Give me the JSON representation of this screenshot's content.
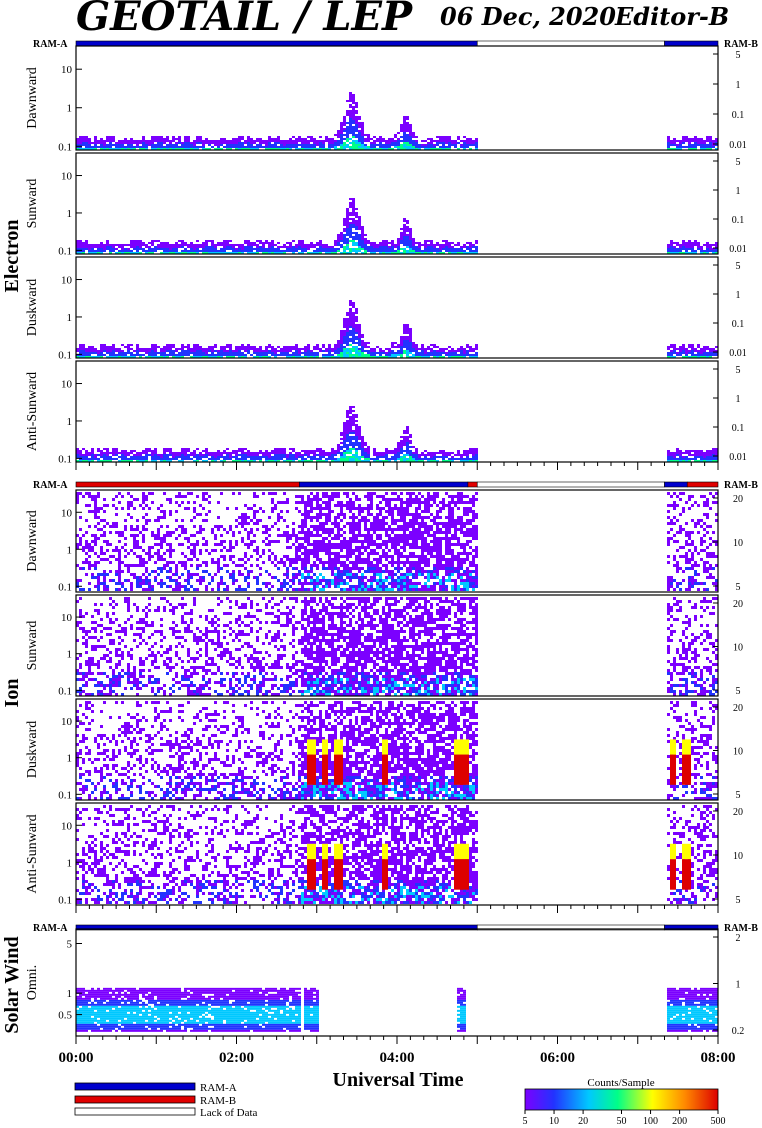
{
  "header": {
    "title": "GEOTAIL / LEP",
    "date": "06 Dec, 2020",
    "editor": "Editor-B"
  },
  "colors": {
    "ram_a": "#0000cc",
    "ram_b": "#e00000",
    "lack_of_data": "#ffffff",
    "spectrogram_scale": [
      "#ffffff",
      "#7b00ff",
      "#2233ff",
      "#00c8ff",
      "#00ff88",
      "#ffff00",
      "#ff8800",
      "#dd0000"
    ]
  },
  "chart_data": [
    {
      "type": "heatmap",
      "group": "Electron",
      "ram_left": "RAM-A",
      "ram_right": "RAM-B",
      "mode_bar": [
        {
          "start": "00:00",
          "end": "05:00",
          "mode": "RAM-A"
        },
        {
          "start": "05:00",
          "end": "07:20",
          "mode": "Lack of Data"
        },
        {
          "start": "07:20",
          "end": "08:00",
          "mode": "RAM-A"
        }
      ],
      "panels": [
        {
          "ylabel": "Dawnward",
          "yticks": [
            "10",
            "1",
            "0.1"
          ],
          "ylim": [
            0.08,
            40
          ],
          "right_ticks": [
            "5",
            "1",
            "0.1",
            "0.01"
          ],
          "peak_time": "03:25",
          "peak_value": 2
        },
        {
          "ylabel": "Sunward",
          "yticks": [
            "10",
            "1",
            "0.1"
          ],
          "ylim": [
            0.08,
            40
          ],
          "right_ticks": [
            "5",
            "1",
            "0.1",
            "0.01"
          ],
          "peak_time": "03:25",
          "peak_value": 2
        },
        {
          "ylabel": "Duskward",
          "yticks": [
            "10",
            "1",
            "0.1"
          ],
          "ylim": [
            0.08,
            40
          ],
          "right_ticks": [
            "5",
            "1",
            "0.1",
            "0.01"
          ],
          "peak_time": "03:25",
          "peak_value": 2
        },
        {
          "ylabel": "Anti-Sunward",
          "yticks": [
            "10",
            "1",
            "0.1"
          ],
          "ylim": [
            0.08,
            40
          ],
          "right_ticks": [
            "5",
            "1",
            "0.1",
            "0.01"
          ],
          "peak_time": "03:25",
          "peak_value": 2
        }
      ],
      "data_intervals": [
        [
          "00:00",
          "05:00"
        ],
        [
          "07:20",
          "08:00"
        ]
      ]
    },
    {
      "type": "heatmap",
      "group": "Ion",
      "ram_left": "RAM-A",
      "ram_right": "RAM-B",
      "mode_bar": [
        {
          "start": "00:00",
          "end": "02:47",
          "mode": "RAM-B"
        },
        {
          "start": "02:47",
          "end": "04:53",
          "mode": "RAM-A"
        },
        {
          "start": "04:53",
          "end": "05:00",
          "mode": "RAM-B"
        },
        {
          "start": "05:00",
          "end": "07:20",
          "mode": "Lack of Data"
        },
        {
          "start": "07:20",
          "end": "07:37",
          "mode": "RAM-A"
        },
        {
          "start": "07:37",
          "end": "08:00",
          "mode": "RAM-B"
        }
      ],
      "panels": [
        {
          "ylabel": "Dawnward",
          "yticks": [
            "10",
            "1",
            "0.1"
          ],
          "ylim": [
            0.07,
            40
          ],
          "right_ticks": [
            "20",
            "10",
            "5"
          ]
        },
        {
          "ylabel": "Sunward",
          "yticks": [
            "10",
            "1",
            "0.1"
          ],
          "ylim": [
            0.07,
            40
          ],
          "right_ticks": [
            "20",
            "10",
            "5"
          ]
        },
        {
          "ylabel": "Duskward",
          "yticks": [
            "10",
            "1",
            "0.1"
          ],
          "ylim": [
            0.07,
            40
          ],
          "right_ticks": [
            "20",
            "10",
            "5"
          ]
        },
        {
          "ylabel": "Anti-Sunward",
          "yticks": [
            "10",
            "1",
            "0.1"
          ],
          "ylim": [
            0.07,
            40
          ],
          "right_ticks": [
            "20",
            "10",
            "5"
          ]
        }
      ],
      "intense_bursts": [
        "02:55",
        "03:05",
        "03:15",
        "03:50",
        "04:45",
        "04:50",
        "07:25",
        "07:35"
      ],
      "data_intervals": [
        [
          "00:00",
          "05:00"
        ],
        [
          "07:20",
          "08:00"
        ]
      ]
    },
    {
      "type": "heatmap",
      "group": "Solar Wind",
      "ram_left": "RAM-A",
      "ram_right": "RAM-B",
      "mode_bar": [
        {
          "start": "00:00",
          "end": "05:00",
          "mode": "RAM-A"
        },
        {
          "start": "05:00",
          "end": "07:20",
          "mode": "Lack of Data"
        },
        {
          "start": "07:20",
          "end": "08:00",
          "mode": "RAM-A"
        }
      ],
      "panels": [
        {
          "ylabel": "Omni.",
          "yticks": [
            "5",
            "1",
            "0.5"
          ],
          "ylim": [
            0.25,
            8
          ],
          "right_ticks": [
            "2",
            "1",
            "0.2"
          ]
        }
      ],
      "data_intervals": [
        [
          "00:00",
          "02:47"
        ],
        [
          "02:50",
          "03:00"
        ],
        [
          "04:43",
          "04:50"
        ],
        [
          "07:20",
          "08:00"
        ]
      ]
    }
  ],
  "x_axis": {
    "label": "Universal Time",
    "ticks": [
      "00:00",
      "02:00",
      "04:00",
      "06:00",
      "08:00"
    ],
    "range_hours": [
      0,
      8
    ]
  },
  "legend": {
    "ram_a": "RAM-A",
    "ram_b": "RAM-B",
    "lack": "Lack of Data"
  },
  "colorbar": {
    "title": "Counts/Sample",
    "ticks": [
      "5",
      "10",
      "20",
      "50",
      "100",
      "200",
      "500"
    ],
    "range": [
      5,
      500
    ]
  }
}
